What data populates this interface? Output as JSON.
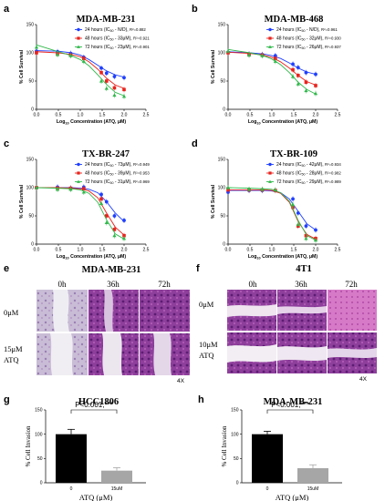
{
  "colors": {
    "blue": "#1f3fff",
    "red": "#e8221c",
    "green": "#2fb84a",
    "black": "#000000",
    "gray": "#a6a6a6"
  },
  "chart_data": [
    {
      "panel": "a",
      "type": "line",
      "title": "MDA-MB-231",
      "xlabel_main": "Log",
      "xlabel_sub": "10",
      "xlabel_rest": " Concentration (ATQ, μM)",
      "ylabel": "% Cell Survival",
      "xlim": [
        0,
        2.5
      ],
      "ylim": [
        0,
        150
      ],
      "xticks": [
        "0.0",
        "0.5",
        "1.0",
        "1.5",
        "2.0",
        "2.5"
      ],
      "yticks": [
        "0",
        "50",
        "100",
        "150"
      ],
      "series": [
        {
          "name": "24 hours (IC",
          "sub": "50",
          "name_rest": " - N/D), ",
          "r2": "R²=0.882",
          "color": "blue",
          "marker": "circle",
          "x": [
            0,
            0.48,
            0.78,
            1.08,
            1.48,
            1.6,
            1.78,
            2.0
          ],
          "y": [
            103,
            102,
            99,
            92,
            73,
            64,
            58,
            56
          ],
          "curve": [
            [
              0,
              104
            ],
            [
              0.5,
              103
            ],
            [
              0.8,
              100
            ],
            [
              1.0,
              96
            ],
            [
              1.2,
              88
            ],
            [
              1.4,
              78
            ],
            [
              1.6,
              68
            ],
            [
              1.8,
              61
            ],
            [
              2.0,
              57
            ]
          ]
        },
        {
          "name": "48 hours (IC",
          "sub": "50",
          "name_rest": " - 33μM), ",
          "r2": "R²=0.921",
          "color": "red",
          "marker": "square",
          "x": [
            0,
            0.48,
            0.78,
            1.08,
            1.48,
            1.6,
            1.78,
            2.0
          ],
          "y": [
            100,
            98,
            96,
            90,
            65,
            50,
            38,
            35
          ],
          "curve": [
            [
              0,
              102
            ],
            [
              0.5,
              100
            ],
            [
              0.8,
              97
            ],
            [
              1.0,
              93
            ],
            [
              1.2,
              84
            ],
            [
              1.4,
              71
            ],
            [
              1.6,
              55
            ],
            [
              1.8,
              43
            ],
            [
              2.0,
              37
            ]
          ]
        },
        {
          "name": "72 hours (IC",
          "sub": "50",
          "name_rest": " - 23μM), ",
          "r2": "R²=0.901",
          "color": "green",
          "marker": "triangle",
          "x": [
            0,
            0.48,
            0.78,
            1.08,
            1.48,
            1.6,
            1.78,
            2.0
          ],
          "y": [
            110,
            97,
            95,
            85,
            50,
            37,
            25,
            23
          ],
          "curve": [
            [
              0,
              114
            ],
            [
              0.5,
              102
            ],
            [
              0.8,
              95
            ],
            [
              1.0,
              88
            ],
            [
              1.2,
              77
            ],
            [
              1.4,
              61
            ],
            [
              1.6,
              44
            ],
            [
              1.8,
              30
            ],
            [
              2.0,
              24
            ]
          ]
        }
      ]
    },
    {
      "panel": "b",
      "type": "line",
      "title": "MDA-MB-468",
      "xlabel_main": "Log",
      "xlabel_sub": "10",
      "xlabel_rest": " Concentration (ATQ, μM)",
      "ylabel": "% Cell Survival",
      "xlim": [
        0,
        2.5
      ],
      "ylim": [
        0,
        150
      ],
      "xticks": [
        "0.0",
        "0.5",
        "1.0",
        "1.5",
        "2.0",
        "2.5"
      ],
      "yticks": [
        "0",
        "50",
        "100",
        "150"
      ],
      "series": [
        {
          "name": "24 hours (IC",
          "sub": "50",
          "name_rest": " - N/D), ",
          "r2": "R²=0.961",
          "color": "blue",
          "marker": "circle",
          "x": [
            0,
            0.48,
            0.78,
            1.08,
            1.48,
            1.6,
            1.78,
            2.0
          ],
          "y": [
            101,
            98,
            97,
            95,
            80,
            74,
            65,
            62
          ],
          "curve": [
            [
              0,
              102
            ],
            [
              0.5,
              100
            ],
            [
              0.8,
              98
            ],
            [
              1.0,
              95
            ],
            [
              1.2,
              90
            ],
            [
              1.4,
              82
            ],
            [
              1.6,
              73
            ],
            [
              1.8,
              66
            ],
            [
              2.0,
              62
            ]
          ]
        },
        {
          "name": "48 hours (IC",
          "sub": "50",
          "name_rest": " - 32μM), ",
          "r2": "R²=0.930",
          "color": "red",
          "marker": "square",
          "x": [
            0,
            0.48,
            0.78,
            1.08,
            1.48,
            1.6,
            1.78,
            2.0
          ],
          "y": [
            100,
            97,
            96,
            90,
            70,
            60,
            48,
            42
          ],
          "curve": [
            [
              0,
              101
            ],
            [
              0.5,
              99
            ],
            [
              0.8,
              96
            ],
            [
              1.0,
              92
            ],
            [
              1.2,
              84
            ],
            [
              1.4,
              73
            ],
            [
              1.6,
              60
            ],
            [
              1.8,
              49
            ],
            [
              2.0,
              43
            ]
          ]
        },
        {
          "name": "72 hours (IC",
          "sub": "50",
          "name_rest": " - 26μM), ",
          "r2": "R²=0.937",
          "color": "green",
          "marker": "triangle",
          "x": [
            0,
            0.48,
            0.78,
            1.08,
            1.48,
            1.6,
            1.78,
            2.0
          ],
          "y": [
            103,
            96,
            95,
            85,
            58,
            45,
            33,
            28
          ],
          "curve": [
            [
              0,
              106
            ],
            [
              0.5,
              100
            ],
            [
              0.8,
              95
            ],
            [
              1.0,
              89
            ],
            [
              1.2,
              79
            ],
            [
              1.4,
              65
            ],
            [
              1.6,
              48
            ],
            [
              1.8,
              35
            ],
            [
              2.0,
              27
            ]
          ]
        }
      ]
    },
    {
      "panel": "c",
      "type": "line",
      "title": "TX-BR-247",
      "xlabel_main": "Log",
      "xlabel_sub": "10",
      "xlabel_rest": " Concentration (ATQ, μM)",
      "ylabel": "% Cell Survival",
      "xlim": [
        0,
        2.5
      ],
      "ylim": [
        0,
        150
      ],
      "xticks": [
        "0.0",
        "0.5",
        "1.0",
        "1.5",
        "2.0",
        "2.5"
      ],
      "yticks": [
        "0",
        "50",
        "100",
        "150"
      ],
      "series": [
        {
          "name": "24 hours (IC",
          "sub": "50",
          "name_rest": " - 73μM), ",
          "r2": "R²=0.949",
          "color": "blue",
          "marker": "circle",
          "x": [
            0,
            0.48,
            0.78,
            1.08,
            1.48,
            1.6,
            1.78,
            2.0
          ],
          "y": [
            100,
            101,
            99,
            101,
            88,
            75,
            50,
            42
          ],
          "curve": [
            [
              0,
              100
            ],
            [
              0.5,
              100
            ],
            [
              0.8,
              100
            ],
            [
              1.0,
              99
            ],
            [
              1.2,
              97
            ],
            [
              1.4,
              91
            ],
            [
              1.6,
              75
            ],
            [
              1.8,
              55
            ],
            [
              2.0,
              40
            ]
          ]
        },
        {
          "name": "48 hours (IC",
          "sub": "50",
          "name_rest": " - 39μM), ",
          "r2": "R²=0.953",
          "color": "red",
          "marker": "square",
          "x": [
            0,
            0.48,
            0.78,
            1.08,
            1.48,
            1.6,
            1.78,
            2.0
          ],
          "y": [
            100,
            99,
            99,
            98,
            80,
            50,
            26,
            15
          ],
          "curve": [
            [
              0,
              100
            ],
            [
              0.5,
              100
            ],
            [
              0.8,
              99
            ],
            [
              1.0,
              98
            ],
            [
              1.2,
              94
            ],
            [
              1.4,
              82
            ],
            [
              1.6,
              55
            ],
            [
              1.8,
              30
            ],
            [
              2.0,
              16
            ]
          ]
        },
        {
          "name": "72 hours (IC",
          "sub": "50",
          "name_rest": " - 31μM), ",
          "r2": "R²=0.969",
          "color": "green",
          "marker": "triangle",
          "x": [
            0,
            0.48,
            0.78,
            1.08,
            1.48,
            1.6,
            1.78,
            2.0
          ],
          "y": [
            100,
            97,
            97,
            92,
            72,
            38,
            15,
            10
          ],
          "curve": [
            [
              0,
              100
            ],
            [
              0.5,
              99
            ],
            [
              0.8,
              98
            ],
            [
              1.0,
              96
            ],
            [
              1.2,
              90
            ],
            [
              1.4,
              74
            ],
            [
              1.6,
              43
            ],
            [
              1.8,
              18
            ],
            [
              2.0,
              9
            ]
          ]
        }
      ]
    },
    {
      "panel": "d",
      "type": "line",
      "title": "TX-BR-109",
      "xlabel_main": "Log",
      "xlabel_sub": "10",
      "xlabel_rest": " Concentration (ATQ, μM)",
      "ylabel": "% Cell Survival",
      "xlim": [
        0,
        2.5
      ],
      "ylim": [
        0,
        150
      ],
      "xticks": [
        "0.0",
        "0.5",
        "1.0",
        "1.5",
        "2.0",
        "2.5"
      ],
      "yticks": [
        "0",
        "50",
        "100",
        "150"
      ],
      "series": [
        {
          "name": "24 hours (IC",
          "sub": "50",
          "name_rest": " - 42μM), ",
          "r2": "R²=0.934",
          "color": "blue",
          "marker": "circle",
          "x": [
            0,
            0.48,
            0.78,
            1.08,
            1.48,
            1.6,
            1.78,
            2.0
          ],
          "y": [
            92,
            95,
            95,
            95,
            80,
            55,
            32,
            25
          ],
          "curve": [
            [
              0,
              95
            ],
            [
              0.5,
              95
            ],
            [
              0.8,
              95
            ],
            [
              1.0,
              94
            ],
            [
              1.2,
              91
            ],
            [
              1.4,
              80
            ],
            [
              1.6,
              58
            ],
            [
              1.8,
              36
            ],
            [
              2.0,
              25
            ]
          ]
        },
        {
          "name": "48 hours (IC",
          "sub": "50",
          "name_rest": " - 28μM), ",
          "r2": "R²=0.982",
          "color": "red",
          "marker": "square",
          "x": [
            0,
            0.48,
            0.78,
            1.08,
            1.48,
            1.6,
            1.78,
            2.0
          ],
          "y": [
            96,
            96,
            96,
            95,
            65,
            32,
            15,
            10
          ],
          "curve": [
            [
              0,
              96
            ],
            [
              0.5,
              96
            ],
            [
              0.8,
              96
            ],
            [
              1.0,
              95
            ],
            [
              1.2,
              90
            ],
            [
              1.4,
              74
            ],
            [
              1.6,
              40
            ],
            [
              1.8,
              17
            ],
            [
              2.0,
              9
            ]
          ]
        },
        {
          "name": "72 hours (IC",
          "sub": "50",
          "name_rest": " - 29μM), ",
          "r2": "R²=0.989",
          "color": "green",
          "marker": "triangle",
          "x": [
            0,
            0.48,
            0.78,
            1.08,
            1.48,
            1.6,
            1.78,
            2.0
          ],
          "y": [
            100,
            97,
            97,
            96,
            70,
            35,
            10,
            7
          ],
          "curve": [
            [
              0,
              100
            ],
            [
              0.5,
              99
            ],
            [
              0.8,
              98
            ],
            [
              1.0,
              97
            ],
            [
              1.2,
              91
            ],
            [
              1.4,
              76
            ],
            [
              1.6,
              42
            ],
            [
              1.8,
              15
            ],
            [
              2.0,
              7
            ]
          ]
        }
      ]
    },
    {
      "panel": "g",
      "type": "bar",
      "title": "HCC1806",
      "categories": [
        "0",
        "15uM"
      ],
      "values": [
        100,
        25
      ],
      "errors": [
        10,
        6
      ],
      "bar_colors": [
        "black",
        "gray"
      ],
      "ylabel": "% Cell Invasion",
      "xlabel": "ATQ (μM)",
      "ylim": [
        0,
        150
      ],
      "yticks": [
        "0",
        "50",
        "100",
        "150"
      ],
      "annotation": "P<0.001,***"
    },
    {
      "panel": "h",
      "type": "bar",
      "title": "MDA-MB-231",
      "categories": [
        "0",
        "15uM"
      ],
      "values": [
        100,
        30
      ],
      "errors": [
        6,
        7
      ],
      "bar_colors": [
        "black",
        "gray"
      ],
      "ylabel": "% Cell Invasion",
      "xlabel": "ATQ (μM)",
      "ylim": [
        0,
        150
      ],
      "yticks": [
        "0",
        "50",
        "100",
        "150"
      ],
      "annotation": "P<0.001,***"
    }
  ],
  "micrographs": [
    {
      "panel": "e",
      "title": "MDA-MB-231",
      "times": [
        "0h",
        "36h",
        "72h"
      ],
      "rows": [
        {
          "label_lines": [
            "0μM"
          ]
        },
        {
          "label_lines": [
            "15μM",
            "ATQ"
          ]
        }
      ],
      "magnification": "4X"
    },
    {
      "panel": "f",
      "title": "4T1",
      "times": [
        "0h",
        "36h",
        "72h"
      ],
      "rows": [
        {
          "label_lines": [
            "0μM"
          ]
        },
        {
          "label_lines": [
            "10μM",
            "ATQ"
          ]
        }
      ],
      "magnification": "4X"
    }
  ]
}
